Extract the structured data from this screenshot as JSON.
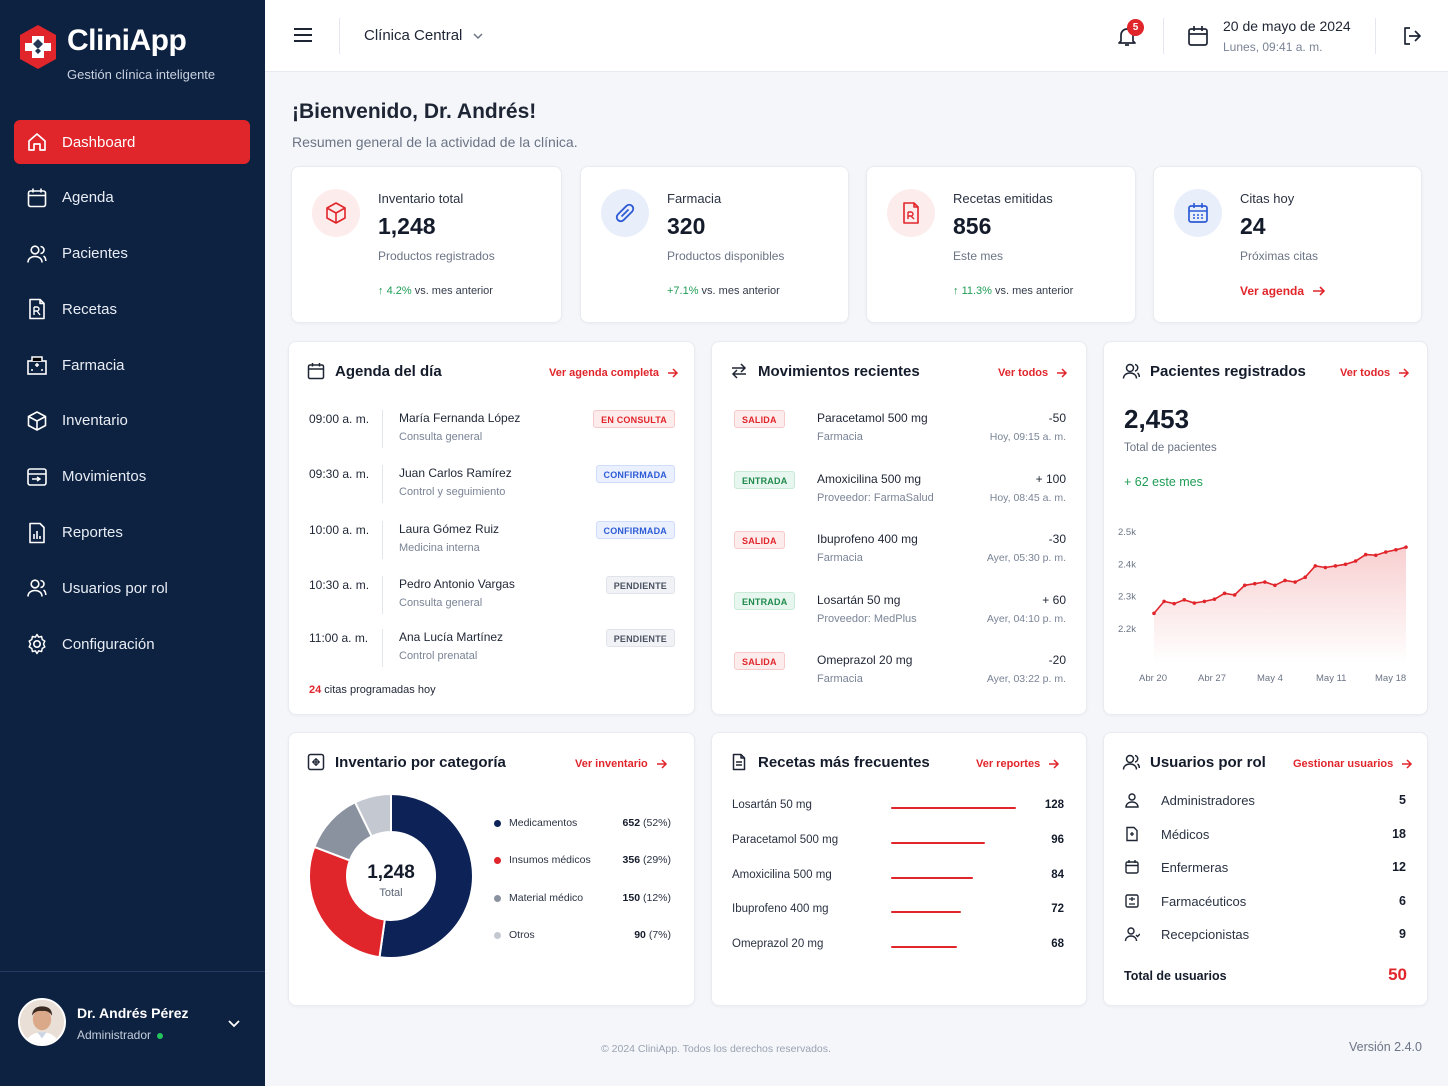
{
  "brand": {
    "name": "CliniApp",
    "tagline": "Gestión clínica inteligente",
    "color": "#e0252b",
    "sidebar_bg": "#0d2140"
  },
  "nav": [
    {
      "label": "Dashboard",
      "icon": "home-icon",
      "active": true
    },
    {
      "label": "Agenda",
      "icon": "calendar-icon"
    },
    {
      "label": "Pacientes",
      "icon": "users-icon"
    },
    {
      "label": "Recetas",
      "icon": "prescription-icon"
    },
    {
      "label": "Farmacia",
      "icon": "pharmacy-icon"
    },
    {
      "label": "Inventario",
      "icon": "box-icon"
    },
    {
      "label": "Movimientos",
      "icon": "movements-icon"
    },
    {
      "label": "Reportes",
      "icon": "report-icon"
    },
    {
      "label": "Usuarios por rol",
      "icon": "user-roles-icon"
    },
    {
      "label": "Configuración",
      "icon": "gear-icon"
    }
  ],
  "user": {
    "name": "Dr. Andrés Pérez",
    "role": "Administrador"
  },
  "topbar": {
    "clinic": "Clínica Central",
    "notifications": "5",
    "date": "20 de mayo de 2024",
    "time": "Lunes, 09:41 a. m."
  },
  "welcome": {
    "title": "¡Bienvenido, Dr. Andrés!",
    "subtitle": "Resumen general de la actividad de la clínica."
  },
  "stats": [
    {
      "title": "Inventario total",
      "value": "1,248",
      "sub": "Productos registrados",
      "trend": "4.2%",
      "trend_suffix": " vs. mes anterior"
    },
    {
      "title": "Farmacia",
      "value": "320",
      "sub": "Productos disponibles",
      "trend": "+7.1%",
      "trend_suffix": " vs. mes anterior"
    },
    {
      "title": "Recetas emitidas",
      "value": "856",
      "sub": "Este mes",
      "trend": "11.3%",
      "trend_suffix": " vs. mes anterior"
    },
    {
      "title": "Citas hoy",
      "value": "24",
      "sub": "Próximas citas",
      "link": "Ver agenda"
    }
  ],
  "agenda": {
    "title": "Agenda del día",
    "link": "Ver agenda completa",
    "items": [
      {
        "time": "09:00 a. m.",
        "name": "María Fernanda López",
        "type": "Consulta general",
        "status": "EN CONSULTA",
        "tone": "red"
      },
      {
        "time": "09:30 a. m.",
        "name": "Juan Carlos Ramírez",
        "type": "Control y seguimiento",
        "status": "CONFIRMADA",
        "tone": "blue"
      },
      {
        "time": "10:00 a. m.",
        "name": "Laura Gómez Ruiz",
        "type": "Medicina interna",
        "status": "CONFIRMADA",
        "tone": "blue"
      },
      {
        "time": "10:30 a. m.",
        "name": "Pedro Antonio Vargas",
        "type": "Consulta general",
        "status": "PENDIENTE",
        "tone": "gray"
      },
      {
        "time": "11:00 a. m.",
        "name": "Ana Lucía Martínez",
        "type": "Control prenatal",
        "status": "PENDIENTE",
        "tone": "gray"
      }
    ],
    "count": "24",
    "count_text": " citas programadas hoy"
  },
  "movements": {
    "title": "Movimientos recientes",
    "link": "Ver todos",
    "items": [
      {
        "type": "SALIDA",
        "tone": "red",
        "name": "Paracetamol 500 mg",
        "source": "Farmacia",
        "qty": "-50",
        "when": "Hoy, 09:15 a. m."
      },
      {
        "type": "ENTRADA",
        "tone": "green",
        "name": "Amoxicilina 500 mg",
        "source": "Proveedor: FarmaSalud",
        "qty": "+ 100",
        "when": "Hoy, 08:45 a. m."
      },
      {
        "type": "SALIDA",
        "tone": "red",
        "name": "Ibuprofeno 400 mg",
        "source": "Farmacia",
        "qty": "-30",
        "when": "Ayer, 05:30 p. m."
      },
      {
        "type": "ENTRADA",
        "tone": "green",
        "name": "Losartán 50 mg",
        "source": "Proveedor: MedPlus",
        "qty": "+ 60",
        "when": "Ayer, 04:10 p. m."
      },
      {
        "type": "SALIDA",
        "tone": "red",
        "name": "Omeprazol 20 mg",
        "source": "Farmacia",
        "qty": "-20",
        "when": "Ayer, 03:22 p. m."
      }
    ]
  },
  "patients": {
    "title": "Pacientes registrados",
    "link": "Ver todos",
    "total": "2,453",
    "total_label": "Total de pacientes",
    "growth": "+ 62 este mes"
  },
  "chart_data": [
    {
      "type": "area",
      "x_ticks": [
        "Abr 20",
        "Abr 27",
        "May 4",
        "May 11",
        "May 18"
      ],
      "y_ticks": [
        "2.5k",
        "2.4k",
        "2.3k",
        "2.2k"
      ],
      "ylim": [
        2150,
        2500
      ],
      "values": [
        2248,
        2285,
        2278,
        2290,
        2280,
        2285,
        2292,
        2310,
        2305,
        2335,
        2340,
        2345,
        2335,
        2350,
        2345,
        2360,
        2395,
        2390,
        2395,
        2400,
        2410,
        2430,
        2428,
        2438,
        2445,
        2453
      ],
      "color": "#e0252b"
    },
    {
      "type": "pie",
      "categories": [
        "Medicamentos",
        "Insumos médicos",
        "Material médico",
        "Otros"
      ],
      "values": [
        652,
        356,
        150,
        90
      ],
      "percent_labels": [
        "(52%)",
        "(29%)",
        "(12%)",
        "(7%)"
      ],
      "colors": [
        "#0d2357",
        "#e0252b",
        "#8a92a0",
        "#c3c8d1"
      ],
      "center_value": "1,248",
      "center_label": "Total"
    },
    {
      "type": "bar",
      "categories": [
        "Losartán 50 mg",
        "Paracetamol 500 mg",
        "Amoxicilina 500 mg",
        "Ibuprofeno 400 mg",
        "Omeprazol 20 mg"
      ],
      "values": [
        128,
        96,
        84,
        72,
        68
      ],
      "xlim": [
        0,
        128
      ]
    }
  ],
  "inventory": {
    "title": "Inventario por categoría",
    "link": "Ver inventario"
  },
  "prescriptions": {
    "title": "Recetas más frecuentes",
    "link": "Ver reportes"
  },
  "roles": {
    "title": "Usuarios por rol",
    "link": "Gestionar usuarios",
    "items": [
      {
        "name": "Administradores",
        "value": "5"
      },
      {
        "name": "Médicos",
        "value": "18"
      },
      {
        "name": "Enfermeras",
        "value": "12"
      },
      {
        "name": "Farmacéuticos",
        "value": "6"
      },
      {
        "name": "Recepcionistas",
        "value": "9"
      }
    ],
    "total_label": "Total de usuarios",
    "total": "50"
  },
  "footer": {
    "copyright": "© 2024 CliniApp. Todos los derechos reservados.",
    "version": "Versión 2.4.0"
  }
}
